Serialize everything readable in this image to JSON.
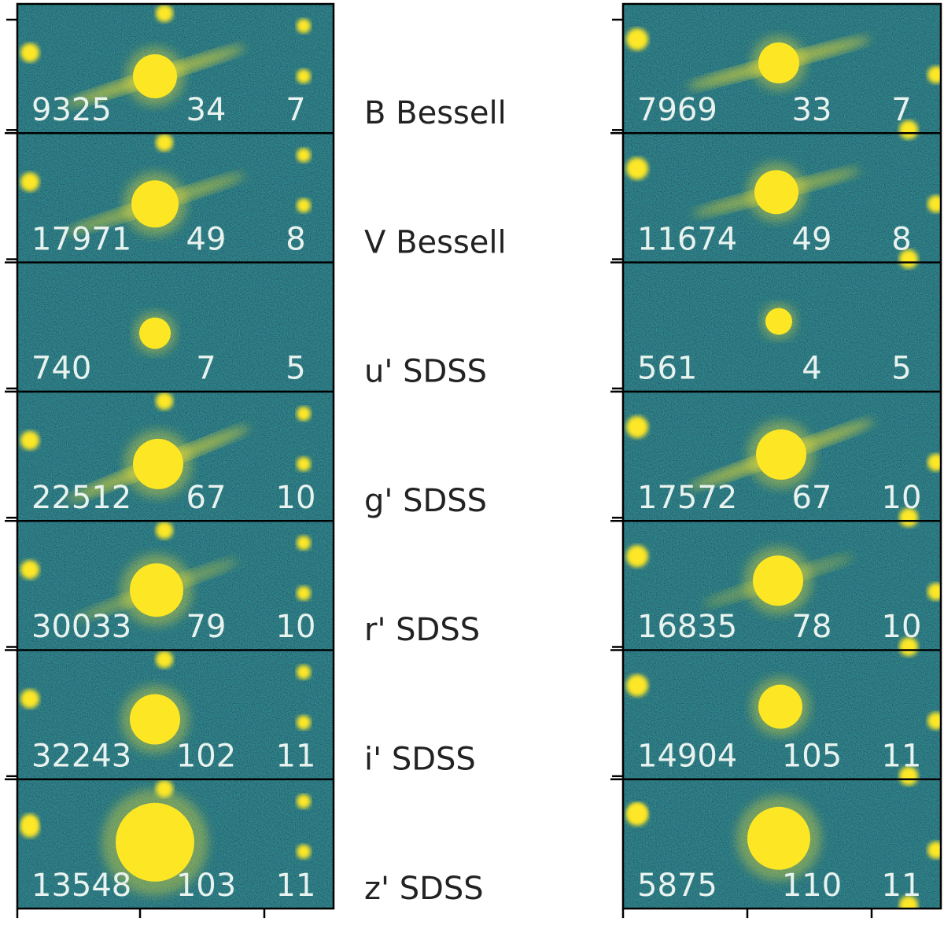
{
  "colors": {
    "background_dark": "#2f6f8e",
    "background_mid": "#25858e",
    "background_green": "#3b9c7a",
    "source_yellow": "#fde725",
    "label_text": "#e8f2ee",
    "frame": "#000000"
  },
  "filters": [
    {
      "name": "B Bessell",
      "left": [
        "9325",
        "34",
        "7"
      ],
      "right": [
        "7969",
        "33",
        "7"
      ]
    },
    {
      "name": "V Bessell",
      "left": [
        "17971",
        "49",
        "8"
      ],
      "right": [
        "11674",
        "49",
        "8"
      ]
    },
    {
      "name": "u' SDSS",
      "left": [
        "740",
        "7",
        "5"
      ],
      "right": [
        "561",
        "4",
        "5"
      ]
    },
    {
      "name": "g' SDSS",
      "left": [
        "22512",
        "67",
        "10"
      ],
      "right": [
        "17572",
        "67",
        "10"
      ]
    },
    {
      "name": "r' SDSS",
      "left": [
        "30033",
        "79",
        "10"
      ],
      "right": [
        "16835",
        "78",
        "10"
      ]
    },
    {
      "name": "i' SDSS",
      "left": [
        "32243",
        "102",
        "11"
      ],
      "right": [
        "14904",
        "105",
        "11"
      ]
    },
    {
      "name": "z' SDSS",
      "left": [
        "13548",
        "103",
        "11"
      ],
      "right": [
        "5875",
        "110",
        "11"
      ]
    }
  ]
}
